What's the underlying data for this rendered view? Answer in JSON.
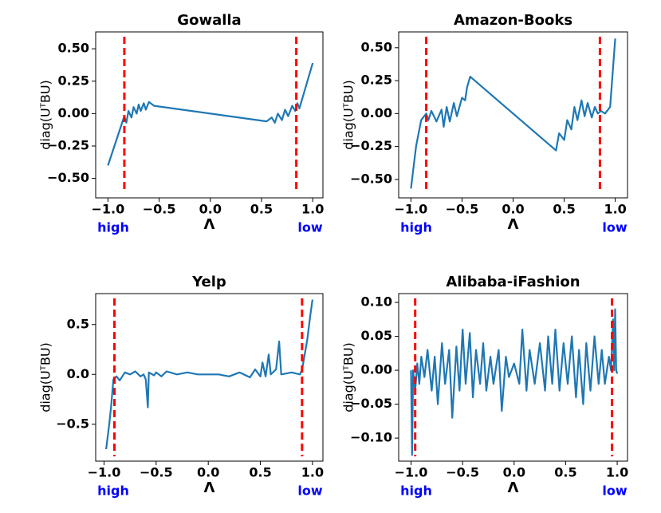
{
  "chart_data": [
    {
      "type": "line",
      "title": "Gowalla",
      "ylabel": "diag(UᵀBU)",
      "xlabel": "Λ",
      "color": "#1f77b4",
      "annotations": [
        "high",
        "low"
      ],
      "annotation_color": "#0000ff",
      "vlines": [
        -0.84,
        0.84
      ],
      "vline_color": "#ff0000",
      "xlim": [
        -1.12,
        1.1
      ],
      "ylim": [
        -0.65,
        0.63
      ],
      "xticks": [
        {
          "value": -1,
          "label": "−1.0"
        },
        {
          "value": -0.5,
          "label": "−0.5"
        },
        {
          "value": 0,
          "label": "0.0"
        },
        0.5,
        {
          "value": 1,
          "label": "1.0"
        }
      ],
      "yticks": [
        {
          "value": -0.5,
          "label": "−0.50"
        },
        {
          "value": -0.25,
          "label": "−0.25"
        },
        {
          "value": 0,
          "label": "0.00"
        },
        0.25,
        {
          "value": 0.5,
          "label": "0.50"
        }
      ],
      "x": [
        -1.0,
        -0.84,
        -0.82,
        -0.8,
        -0.77,
        -0.75,
        -0.72,
        -0.7,
        -0.68,
        -0.65,
        -0.63,
        -0.6,
        -0.55,
        0.55,
        0.6,
        0.63,
        0.66,
        0.7,
        0.73,
        0.76,
        0.8,
        0.83,
        0.85,
        0.87,
        1.0
      ],
      "values": [
        -0.4,
        -0.02,
        -0.07,
        0.02,
        -0.03,
        0.05,
        0.0,
        0.07,
        0.02,
        0.08,
        0.03,
        0.09,
        0.06,
        -0.06,
        -0.03,
        -0.07,
        0.0,
        -0.05,
        0.03,
        -0.02,
        0.06,
        0.02,
        0.08,
        0.04,
        0.39
      ]
    },
    {
      "type": "line",
      "title": "Amazon-Books",
      "ylabel": "diag(UᵀBU)",
      "xlabel": "Λ",
      "color": "#1f77b4",
      "annotations": [
        "high",
        "low"
      ],
      "annotation_color": "#0000ff",
      "vlines": [
        -0.85,
        0.85
      ],
      "vline_color": "#ff0000",
      "xlim": [
        -1.12,
        1.12
      ],
      "ylim": [
        -0.64,
        0.62
      ],
      "xticks": [
        {
          "value": -1,
          "label": "−1.0"
        },
        {
          "value": -0.5,
          "label": "−0.5"
        },
        {
          "value": 0,
          "label": "0.0"
        },
        0.5,
        {
          "value": 1,
          "label": "1.0"
        }
      ],
      "yticks": [
        {
          "value": -0.5,
          "label": "−0.50"
        },
        {
          "value": -0.25,
          "label": "−0.25"
        },
        {
          "value": 0,
          "label": "0.00"
        },
        0.25,
        {
          "value": 0.5,
          "label": "0.50"
        }
      ],
      "x": [
        -1.0,
        -0.95,
        -0.9,
        -0.85,
        -0.83,
        -0.8,
        -0.75,
        -0.7,
        -0.68,
        -0.65,
        -0.62,
        -0.58,
        -0.55,
        -0.5,
        -0.47,
        -0.45,
        -0.42,
        0.42,
        0.45,
        0.5,
        0.53,
        0.57,
        0.6,
        0.63,
        0.67,
        0.7,
        0.73,
        0.77,
        0.8,
        0.83,
        0.86,
        0.9,
        0.95,
        1.0
      ],
      "values": [
        -0.57,
        -0.25,
        -0.05,
        0.0,
        -0.05,
        0.02,
        -0.06,
        0.03,
        -0.1,
        0.05,
        -0.06,
        0.08,
        -0.02,
        0.12,
        0.1,
        0.2,
        0.28,
        -0.28,
        -0.15,
        -0.2,
        -0.05,
        -0.12,
        0.05,
        -0.05,
        0.1,
        -0.02,
        0.08,
        -0.03,
        0.05,
        0.0,
        0.02,
        0.0,
        0.05,
        0.57
      ]
    },
    {
      "type": "line",
      "title": "Yelp",
      "ylabel": "diag(UᵀBU)",
      "xlabel": "Λ",
      "color": "#1f77b4",
      "annotations": [
        "high",
        "low"
      ],
      "annotation_color": "#0000ff",
      "vlines": [
        -0.9,
        0.9
      ],
      "vline_color": "#ff0000",
      "xlim": [
        -1.08,
        1.1
      ],
      "ylim": [
        -0.87,
        0.81
      ],
      "xticks": [
        {
          "value": -1,
          "label": "−1.0"
        },
        {
          "value": -0.5,
          "label": "−0.5"
        },
        {
          "value": 0,
          "label": "0.0"
        },
        0.5,
        {
          "value": 1,
          "label": "1.0"
        }
      ],
      "yticks": [
        {
          "value": -0.5,
          "label": "−0.5"
        },
        {
          "value": 0,
          "label": "0.0"
        },
        0.5
      ],
      "x": [
        -0.98,
        -0.95,
        -0.93,
        -0.91,
        -0.88,
        -0.85,
        -0.8,
        -0.75,
        -0.7,
        -0.65,
        -0.62,
        -0.6,
        -0.58,
        -0.57,
        -0.52,
        -0.5,
        -0.45,
        -0.4,
        -0.3,
        -0.2,
        -0.1,
        0.1,
        0.2,
        0.3,
        0.4,
        0.45,
        0.5,
        0.52,
        0.55,
        0.58,
        0.6,
        0.65,
        0.68,
        0.7,
        0.8,
        0.88,
        0.9,
        0.95,
        0.98,
        1.0
      ],
      "values": [
        -0.75,
        -0.5,
        -0.3,
        -0.05,
        -0.02,
        -0.06,
        0.02,
        0.0,
        0.03,
        -0.02,
        0.0,
        -0.05,
        -0.33,
        0.02,
        -0.01,
        0.02,
        -0.02,
        0.03,
        0.0,
        0.02,
        0.0,
        0.0,
        -0.02,
        0.02,
        -0.03,
        0.05,
        -0.02,
        0.12,
        -0.02,
        0.2,
        0.0,
        0.05,
        0.33,
        0.0,
        0.02,
        0.0,
        0.05,
        0.35,
        0.6,
        0.75
      ]
    },
    {
      "type": "line",
      "title": "Alibaba-iFashion",
      "ylabel": "diag(UᵀBU)",
      "xlabel": "Λ",
      "color": "#1f77b4",
      "annotations": [
        "high",
        "low"
      ],
      "annotation_color": "#0000ff",
      "vlines": [
        -0.96,
        0.95
      ],
      "vline_color": "#ff0000",
      "xlim": [
        -1.12,
        1.1
      ],
      "ylim": [
        -0.134,
        0.113
      ],
      "xticks": [
        {
          "value": -1,
          "label": "−1.0"
        },
        {
          "value": -0.5,
          "label": "−0.5"
        },
        {
          "value": 0,
          "label": "0.0"
        },
        0.5,
        {
          "value": 1,
          "label": "1.0"
        }
      ],
      "yticks": [
        {
          "value": -0.1,
          "label": "−0.10"
        },
        {
          "value": -0.05,
          "label": "−0.05"
        },
        {
          "value": 0,
          "label": "0.00"
        },
        0.05,
        {
          "value": 0.1,
          "label": "0.10"
        }
      ],
      "x": [
        -1.0,
        -0.99,
        -0.98,
        -0.96,
        -0.94,
        -0.92,
        -0.9,
        -0.87,
        -0.84,
        -0.8,
        -0.77,
        -0.74,
        -0.7,
        -0.67,
        -0.63,
        -0.6,
        -0.56,
        -0.53,
        -0.5,
        -0.47,
        -0.43,
        -0.4,
        -0.37,
        -0.33,
        -0.3,
        -0.27,
        -0.23,
        -0.2,
        -0.15,
        -0.12,
        -0.08,
        -0.05,
        0.0,
        0.05,
        0.08,
        0.12,
        0.15,
        0.2,
        0.25,
        0.3,
        0.33,
        0.37,
        0.4,
        0.44,
        0.48,
        0.52,
        0.56,
        0.6,
        0.63,
        0.67,
        0.7,
        0.74,
        0.78,
        0.82,
        0.85,
        0.88,
        0.92,
        0.94,
        0.96,
        0.97,
        0.98,
        0.99,
        1.0
      ],
      "values": [
        0.0,
        -0.125,
        0.0,
        -0.03,
        0.01,
        -0.02,
        0.02,
        -0.01,
        0.03,
        -0.03,
        0.02,
        -0.05,
        0.04,
        -0.02,
        0.03,
        -0.07,
        0.035,
        -0.03,
        0.06,
        -0.02,
        0.055,
        -0.04,
        0.03,
        -0.02,
        0.04,
        -0.03,
        0.02,
        -0.02,
        0.03,
        -0.06,
        0.02,
        -0.01,
        0.01,
        -0.02,
        0.06,
        -0.03,
        0.03,
        -0.02,
        0.04,
        -0.03,
        0.05,
        -0.02,
        0.06,
        -0.03,
        0.04,
        -0.02,
        0.05,
        -0.04,
        0.03,
        -0.05,
        0.04,
        -0.03,
        0.05,
        -0.02,
        0.03,
        -0.02,
        0.02,
        0.0,
        0.075,
        0.0,
        0.09,
        0.0,
        -0.005
      ]
    }
  ]
}
